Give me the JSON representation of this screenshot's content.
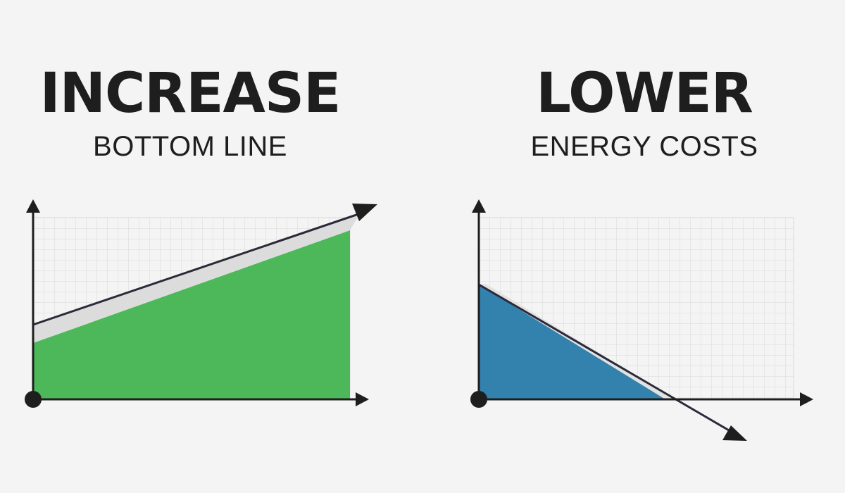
{
  "left_panel": {
    "headline": "INCREASE",
    "subheadline": "BOTTOM LINE",
    "fill_color": "#4cb85a",
    "trend": "rising"
  },
  "right_panel": {
    "headline": "LOWER",
    "subheadline": "ENERGY COSTS",
    "fill_color": "#3381ad",
    "trend": "falling"
  },
  "colors": {
    "background": "#f4f4f4",
    "axis": "#1e1e1e",
    "grid": "#d7d7d7"
  }
}
